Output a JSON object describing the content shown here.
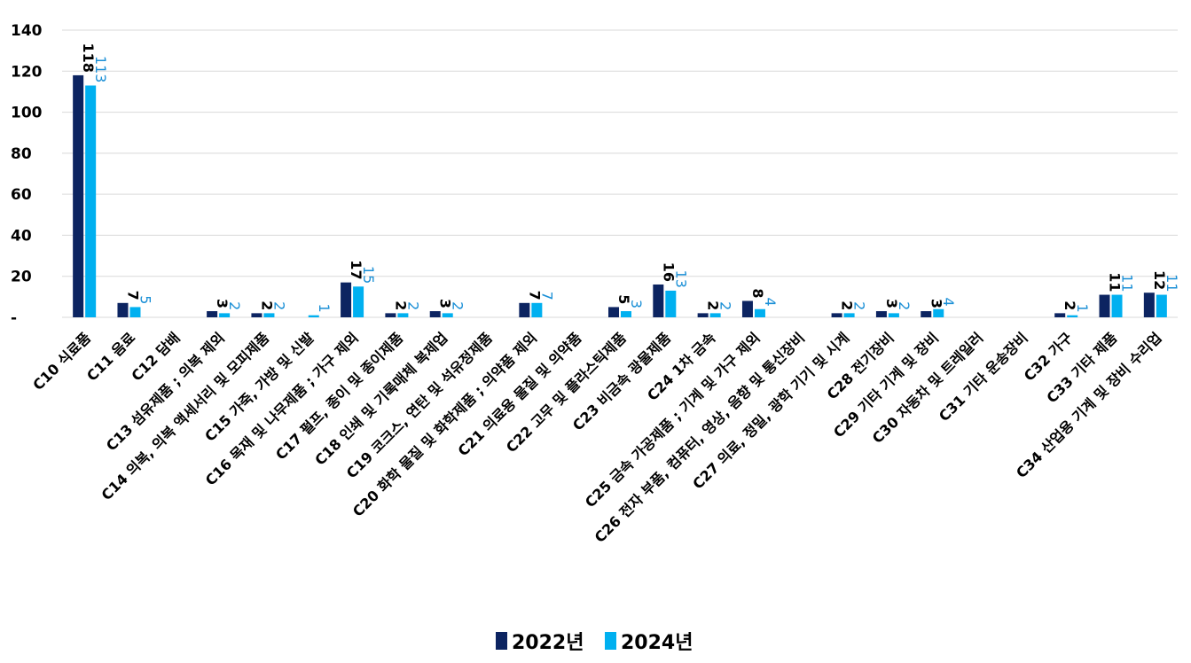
{
  "chart_data": {
    "type": "bar",
    "title": "",
    "xlabel": "",
    "ylabel": "",
    "ylim": [
      0,
      140
    ],
    "yticks": [
      {
        "value": 0,
        "label": "-"
      },
      {
        "value": 20,
        "label": "20"
      },
      {
        "value": 40,
        "label": "40"
      },
      {
        "value": 60,
        "label": "60"
      },
      {
        "value": 80,
        "label": "80"
      },
      {
        "value": 100,
        "label": "100"
      },
      {
        "value": 120,
        "label": "120"
      },
      {
        "value": 140,
        "label": "140"
      }
    ],
    "grid": true,
    "legend_position": "bottom",
    "categories": [
      "C10 식료품",
      "C11 음료",
      "C12 담배",
      "C13 섬유제품 ; 의복 제외",
      "C14 의복, 의복 액세서리 및 모피제품",
      "C15 가죽, 가방 및 신발",
      "C16 목재 및 나무제품 ; 가구 제외",
      "C17 펄프, 종이 및 종이제품",
      "C18 인쇄 및 기록매체 복제업",
      "C19 코크스, 연탄 및 석유정제품",
      "C20 화학 물질 및 화학제품 ; 의약품 제외",
      "C21 의료용 물질 및 의약품",
      "C22 고무 및 플라스틱제품",
      "C23 비금속 광물제품",
      "C24 1차 금속",
      "C25 금속 가공제품 ; 기계 및 가구 제외",
      "C26 전자 부품, 컴퓨터, 영상, 음향 및 통신장비",
      "C27 의료, 정밀, 광학 기기 및 시계",
      "C28 전기장비",
      "C29 기타 기계 및 장비",
      "C30 자동차 및 트레일러",
      "C31 기타 운송장비",
      "C32 가구",
      "C33 기타 제품",
      "C34 산업용 기계 및 장비 수리업"
    ],
    "series": [
      {
        "name": "2022년",
        "color": "#0c2461",
        "values": [
          118,
          7,
          null,
          3,
          2,
          null,
          17,
          2,
          3,
          null,
          7,
          null,
          5,
          16,
          2,
          8,
          null,
          2,
          3,
          3,
          null,
          null,
          2,
          11,
          12
        ]
      },
      {
        "name": "2024년",
        "color": "#00b0f0",
        "values": [
          113,
          5,
          null,
          2,
          2,
          1,
          15,
          2,
          2,
          null,
          7,
          null,
          3,
          13,
          2,
          4,
          null,
          2,
          2,
          4,
          null,
          null,
          1,
          11,
          11
        ]
      }
    ]
  }
}
